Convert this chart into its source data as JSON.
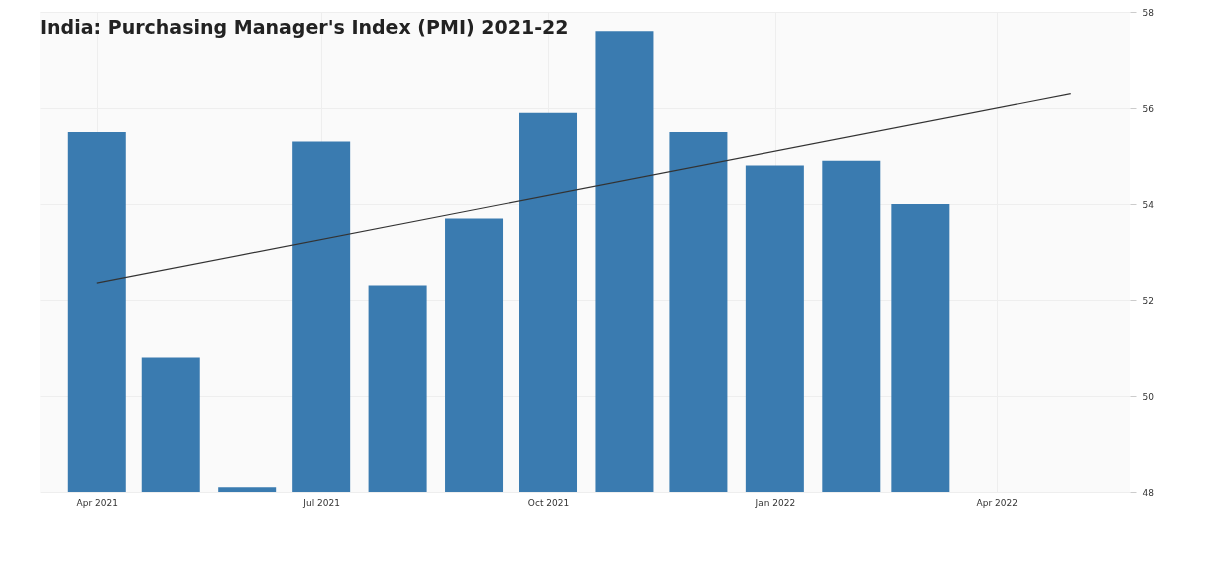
{
  "chart_data": {
    "type": "bar",
    "title": "India: Purchasing Manager's Index (PMI) 2021-22",
    "x": [
      "2021-04-01",
      "2021-05-01",
      "2021-06-01",
      "2021-07-01",
      "2021-08-01",
      "2021-09-01",
      "2021-10-01",
      "2021-11-01",
      "2021-12-01",
      "2022-01-01",
      "2022-02-01",
      "2022-03-01"
    ],
    "series": [
      {
        "color": "#3a7bb0",
        "values": [
          55.5,
          50.8,
          48.1,
          55.3,
          52.3,
          53.7,
          55.9,
          57.6,
          55.5,
          54.8,
          54.9,
          54.0
        ]
      },
      {
        "type": "line",
        "color": "#333333",
        "x": [
          "2021-04-01",
          "2022-05-01"
        ],
        "values": [
          52.35,
          56.3
        ]
      }
    ],
    "xlim": [
      "2021-03-11",
      "2022-05-23"
    ],
    "xticks": [
      {
        "value": "2021-04-01",
        "label": "Apr 2021"
      },
      {
        "value": "2021-07-01",
        "label": "Jul 2021"
      },
      {
        "value": "2021-10-01",
        "label": "Oct 2021"
      },
      {
        "value": "2022-01-01",
        "label": "Jan 2022"
      },
      {
        "value": "2022-04-01",
        "label": "Apr 2022"
      }
    ],
    "ylim": [
      48,
      58
    ],
    "yticks": [
      48,
      50,
      52,
      54,
      56,
      58
    ],
    "grid": true
  }
}
